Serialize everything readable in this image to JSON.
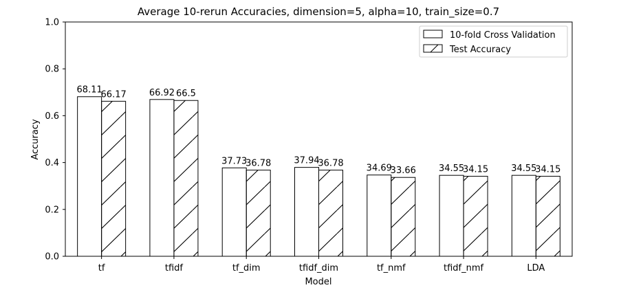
{
  "chart_data": {
    "type": "bar",
    "title": "Average 10-rerun Accuracies, dimension=5, alpha=10, train_size=0.7",
    "xlabel": "Model",
    "ylabel": "Accuracy",
    "ylim": [
      0,
      1.0
    ],
    "yticks": [
      "0.0",
      "0.2",
      "0.4",
      "0.6",
      "0.8",
      "1.0"
    ],
    "categories": [
      "tf",
      "tfidf",
      "tf_dim",
      "tfidf_dim",
      "tf_nmf",
      "tfidf_nmf",
      "LDA"
    ],
    "series": [
      {
        "name": "10-fold Cross Validation",
        "values": [
          0.6811,
          0.6692,
          0.3773,
          0.3794,
          0.3469,
          0.3455,
          0.3455
        ],
        "labels": [
          "68.11",
          "66.92",
          "37.73",
          "37.94",
          "34.69",
          "34.55",
          "34.55"
        ],
        "hatch": "none"
      },
      {
        "name": "Test Accuracy",
        "values": [
          0.6617,
          0.665,
          0.3678,
          0.3678,
          0.3366,
          0.3415,
          0.3415
        ],
        "labels": [
          "66.17",
          "66.5",
          "36.78",
          "36.78",
          "33.66",
          "34.15",
          "34.15"
        ],
        "hatch": "diagonal"
      }
    ],
    "legend_position": "top-right",
    "grid": false,
    "bar_fill": "#ffffff",
    "bar_edge": "#000000"
  }
}
